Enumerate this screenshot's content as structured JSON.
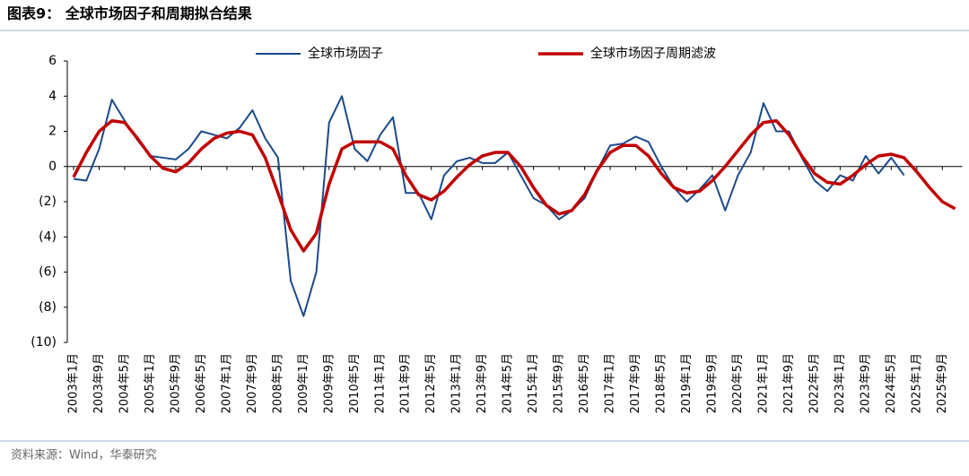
{
  "chart_data": {
    "type": "line",
    "title": "图表9：  全球市场因子和周期拟合结果",
    "source": "资料来源：Wind，华泰研究",
    "categories": [
      "2003年1月",
      null,
      "2003年9月",
      null,
      "2004年5月",
      null,
      "2005年1月",
      null,
      "2005年9月",
      null,
      "2006年5月",
      null,
      "2007年1月",
      null,
      "2007年9月",
      null,
      "2008年5月",
      null,
      "2009年1月",
      null,
      "2009年9月",
      null,
      "2010年5月",
      null,
      "2011年1月",
      null,
      "2011年9月",
      null,
      "2012年5月",
      null,
      "2013年1月",
      null,
      "2013年9月",
      null,
      "2014年5月",
      null,
      "2015年1月",
      null,
      "2015年9月",
      null,
      "2016年5月",
      null,
      "2017年1月",
      null,
      "2017年9月",
      null,
      "2018年5月",
      null,
      "2019年1月",
      null,
      "2019年9月",
      null,
      "2020年5月",
      null,
      "2021年1月",
      null,
      "2021年9月",
      null,
      "2022年5月",
      null,
      "2023年1月",
      null,
      "2023年9月",
      null,
      "2024年5月",
      null,
      "2025年1月",
      null,
      "2025年9月",
      null
    ],
    "series": [
      {
        "name": "全球市场因子",
        "color": "#1b4a8a",
        "values": [
          -0.7,
          -0.8,
          1.0,
          3.8,
          2.6,
          1.5,
          0.6,
          0.5,
          0.4,
          1.0,
          2.0,
          1.8,
          1.6,
          2.2,
          3.2,
          1.6,
          0.5,
          -6.5,
          -8.5,
          -6.0,
          2.5,
          4.0,
          1.0,
          0.3,
          1.8,
          2.8,
          -1.5,
          -1.5,
          -3.0,
          -0.5,
          0.3,
          0.5,
          0.2,
          0.2,
          0.8,
          -0.5,
          -1.8,
          -2.2,
          -3.0,
          -2.5,
          -1.8,
          -0.2,
          1.2,
          1.3,
          1.7,
          1.4,
          0.0,
          -1.2,
          -2.0,
          -1.3,
          -0.5,
          -2.5,
          -0.5,
          0.8,
          3.6,
          2.0,
          2.0,
          0.5,
          -0.8,
          -1.4,
          -0.5,
          -0.8,
          0.6,
          -0.4,
          0.5,
          -0.5,
          null,
          null,
          null,
          null
        ]
      },
      {
        "name": "全球市场因子周期滤波",
        "color": "#c00000",
        "values": [
          -0.6,
          0.8,
          2.0,
          2.6,
          2.5,
          1.6,
          0.6,
          -0.1,
          -0.3,
          0.2,
          1.0,
          1.6,
          1.9,
          2.0,
          1.8,
          0.5,
          -1.5,
          -3.6,
          -4.8,
          -3.8,
          -1.0,
          1.0,
          1.4,
          1.4,
          1.4,
          1.0,
          -0.5,
          -1.6,
          -1.9,
          -1.4,
          -0.6,
          0.1,
          0.6,
          0.8,
          0.8,
          0.0,
          -1.2,
          -2.2,
          -2.7,
          -2.5,
          -1.6,
          -0.2,
          0.8,
          1.2,
          1.2,
          0.6,
          -0.4,
          -1.2,
          -1.5,
          -1.4,
          -0.8,
          0.0,
          0.9,
          1.8,
          2.5,
          2.6,
          1.8,
          0.6,
          -0.4,
          -0.9,
          -1.0,
          -0.5,
          0.1,
          0.6,
          0.7,
          0.5,
          -0.3,
          -1.2,
          -2.0,
          -2.4
        ]
      }
    ],
    "ylim": [
      -10,
      6
    ],
    "yticks": [
      6,
      4,
      2,
      0,
      {
        "value": -2,
        "label": "(2)"
      },
      {
        "value": -4,
        "label": "(4)"
      },
      {
        "value": -6,
        "label": "(6)"
      },
      {
        "value": -8,
        "label": "(8)"
      },
      {
        "value": -10,
        "label": "(10)"
      }
    ],
    "grid": false,
    "legend": "top"
  }
}
